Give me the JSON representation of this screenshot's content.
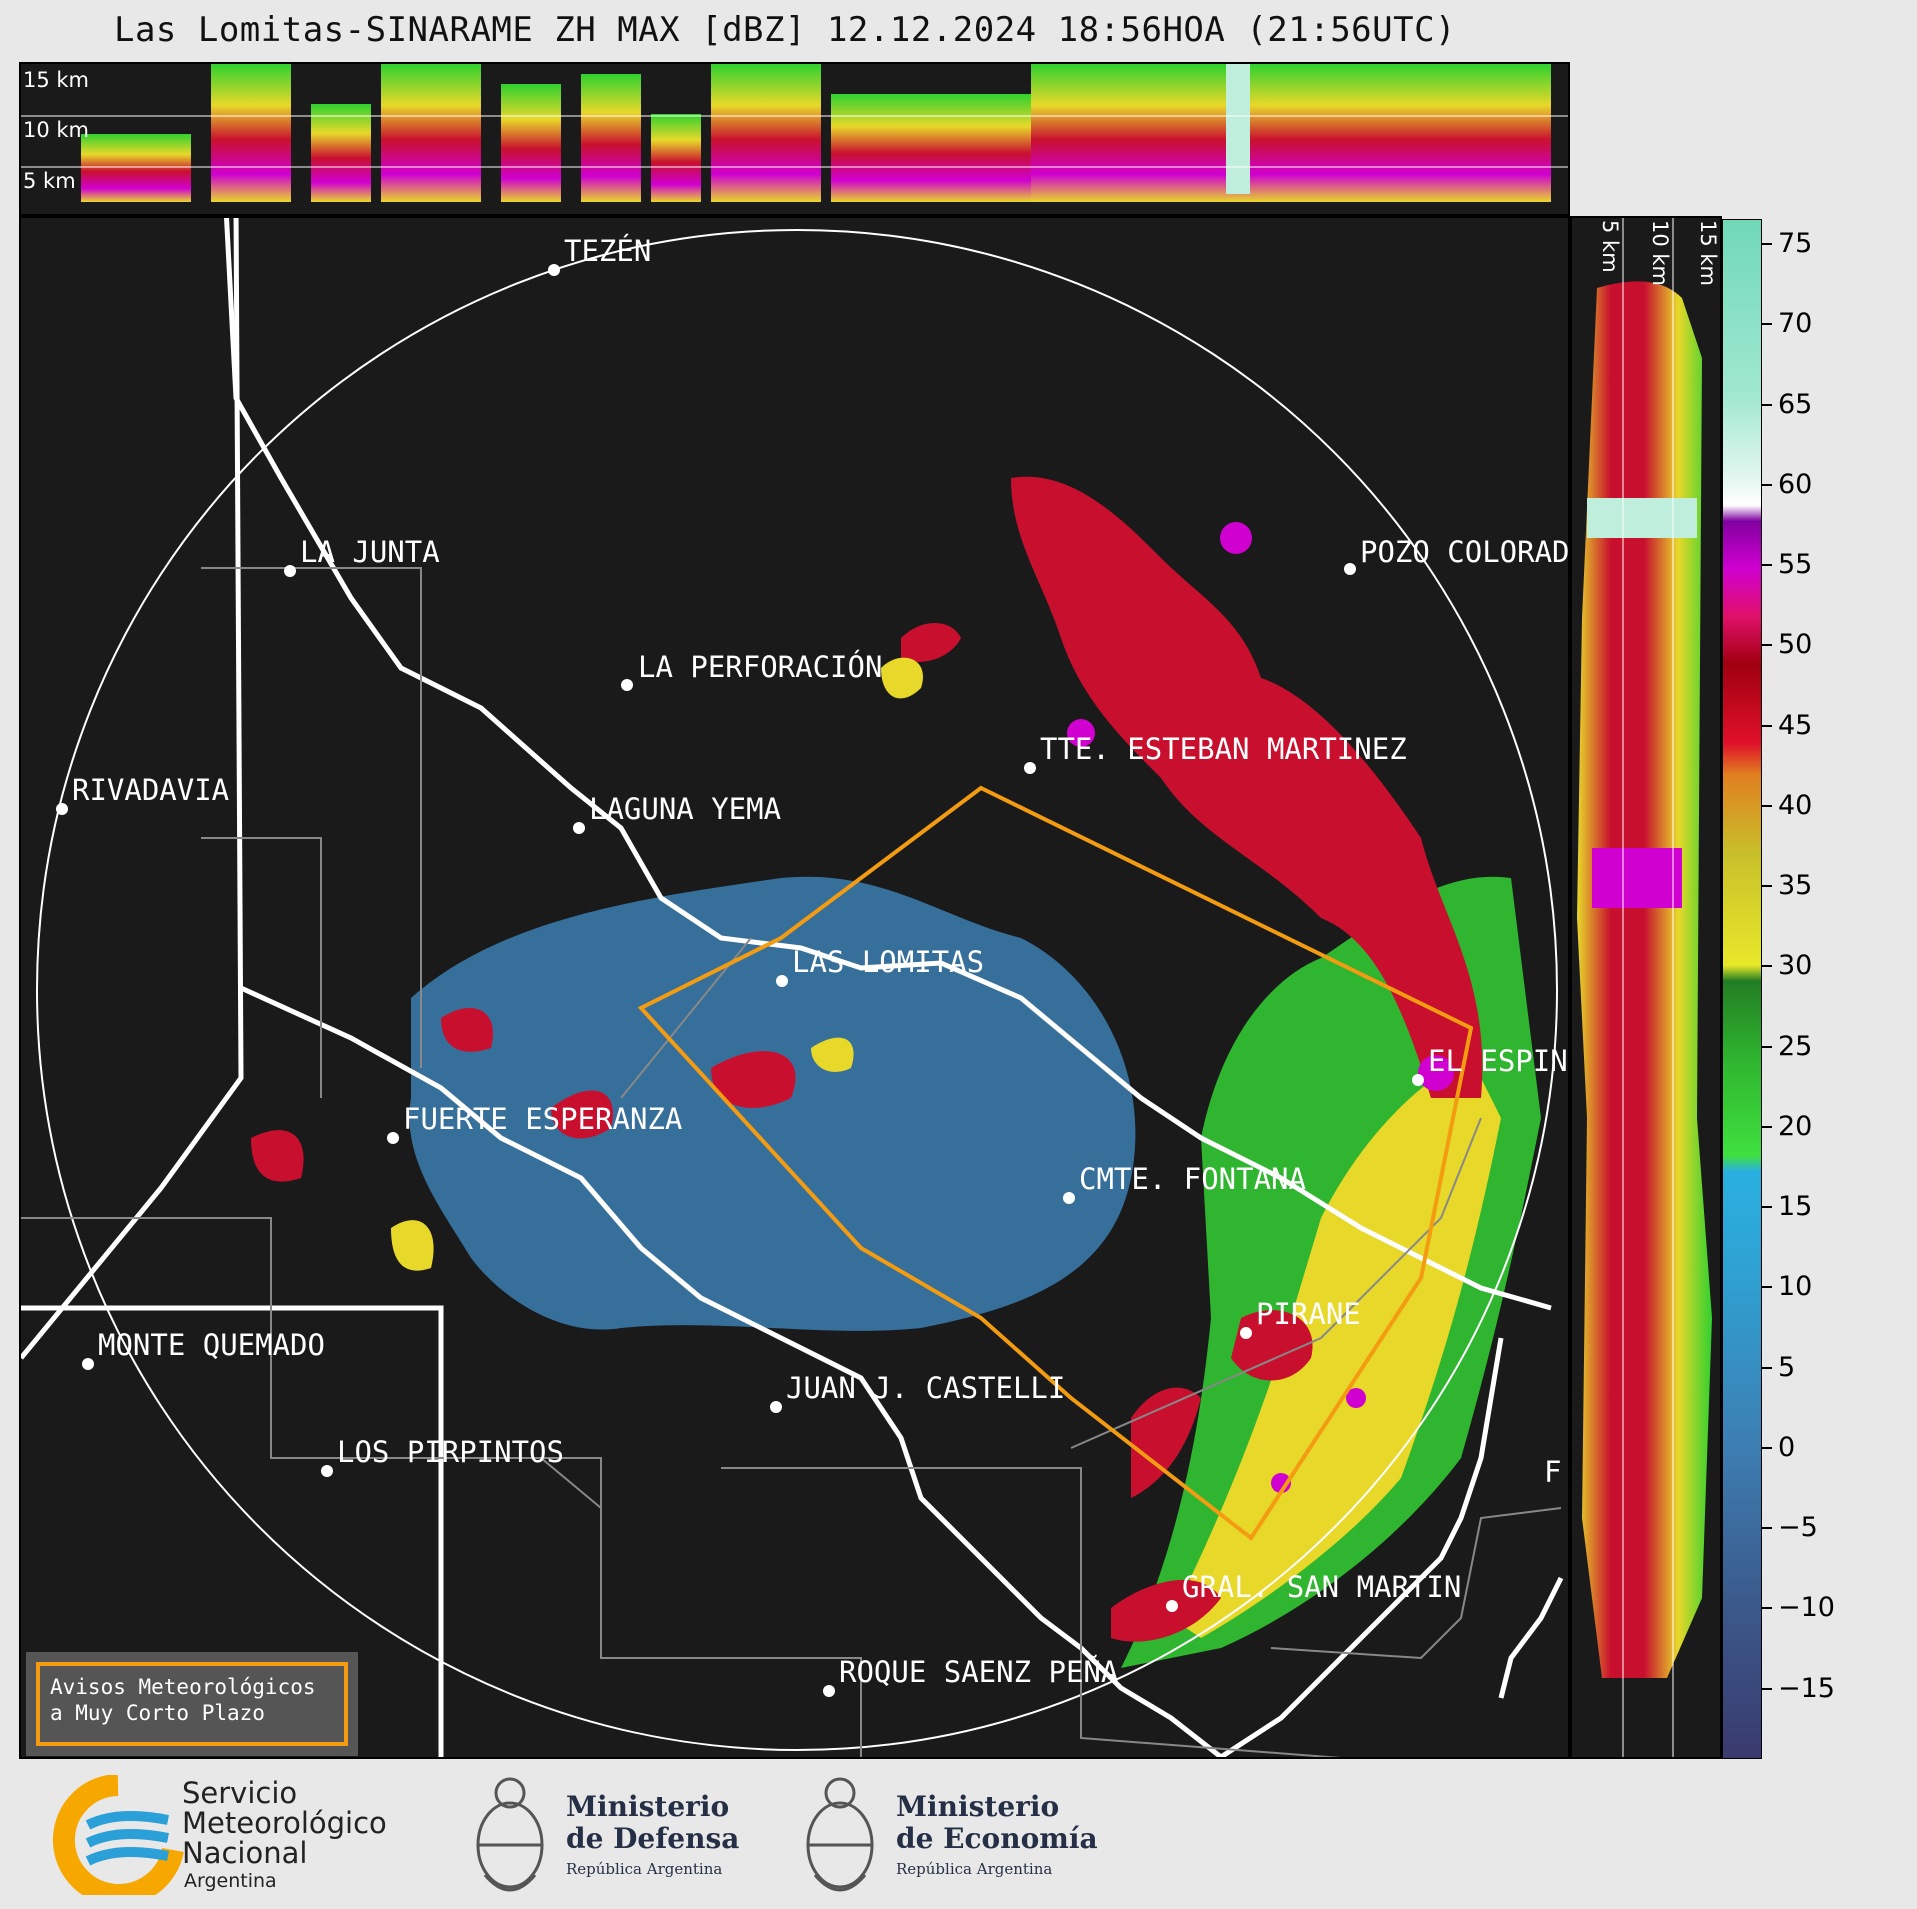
{
  "title": "Las Lomitas-SINARAME ZH MAX [dBZ] 12.12.2024 18:56HOA (21:56UTC)",
  "height_labels": {
    "h15": "15 km",
    "h10": "10 km",
    "h5": "5 km"
  },
  "cities": [
    {
      "name": "TEZÉN"
    },
    {
      "name": "LA JUNTA"
    },
    {
      "name": "POZO COLORADO"
    },
    {
      "name": "LA PERFORACIÓN"
    },
    {
      "name": "TTE. ESTEBAN MARTINEZ"
    },
    {
      "name": "RIVADAVIA"
    },
    {
      "name": "LAGUNA YEMA"
    },
    {
      "name": "LAS LOMITAS"
    },
    {
      "name": "EL ESPINILLO"
    },
    {
      "name": "FUERTE ESPERANZA"
    },
    {
      "name": "CMTE. FONTANA"
    },
    {
      "name": "PIRANE"
    },
    {
      "name": "MONTE QUEMADO"
    },
    {
      "name": "JUAN J. CASTELLI"
    },
    {
      "name": "LOS PIRPINTOS"
    },
    {
      "name": "GRAL. SAN MARTIN"
    },
    {
      "name": "ROQUE SAENZ PEÑA"
    },
    {
      "name": "F"
    }
  ],
  "colorbar": {
    "ticks": [
      "75",
      "70",
      "65",
      "60",
      "55",
      "50",
      "45",
      "40",
      "35",
      "30",
      "25",
      "20",
      "15",
      "10",
      "5",
      "0",
      "−5",
      "−10",
      "−15"
    ],
    "range": [
      -20,
      77
    ]
  },
  "avisos": {
    "line1": "Avisos Meteorológicos",
    "line2": "a Muy Corto Plazo"
  },
  "logos": {
    "smn": {
      "l1": "Servicio",
      "l2": "Meteorológico",
      "l3": "Nacional",
      "l4": "Argentina"
    },
    "defensa": {
      "l1": "Ministerio",
      "l2": "de Defensa",
      "l3": "República Argentina"
    },
    "economia": {
      "l1": "Ministerio",
      "l2": "de Economía",
      "l3": "República Argentina"
    }
  },
  "colors": {
    "background": "#1a1a1a",
    "borders": "#ffffff",
    "warning_polygon": "#f39c12"
  }
}
